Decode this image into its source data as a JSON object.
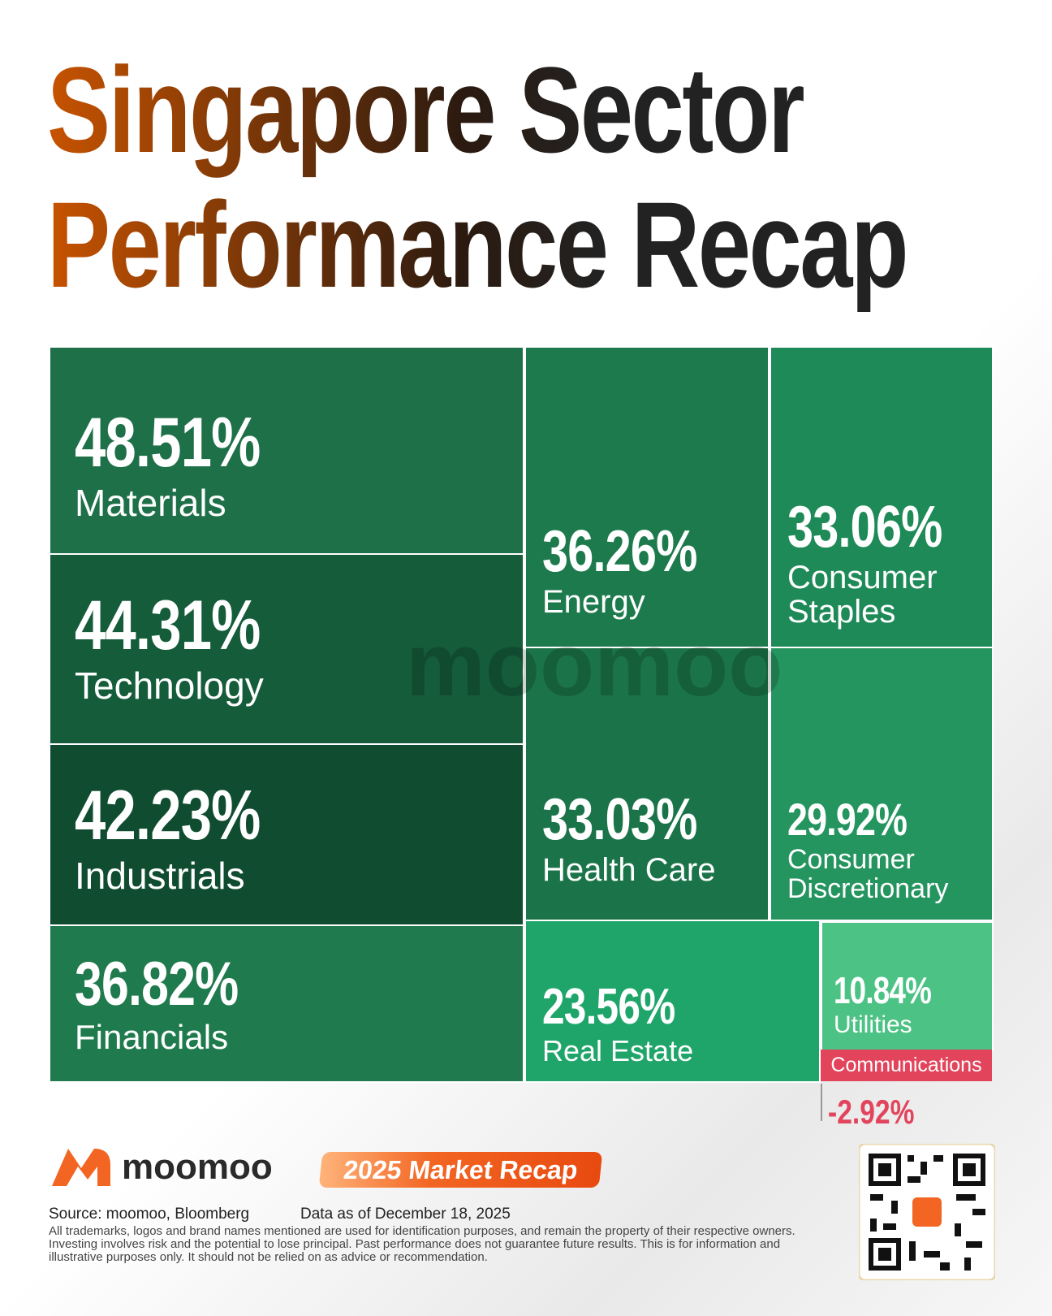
{
  "chart_data": {
    "type": "treemap",
    "title": "Singapore Sector Performance Recap",
    "watermark": "moomoo",
    "categories": [
      "Materials",
      "Technology",
      "Industrials",
      "Financials",
      "Energy",
      "Health Care",
      "Real Estate",
      "Consumer Staples",
      "Consumer Discretionary",
      "Utilities",
      "Communications"
    ],
    "values": [
      48.51,
      44.31,
      42.23,
      36.82,
      36.26,
      33.03,
      23.56,
      33.06,
      29.92,
      10.84,
      -2.92
    ],
    "value_labels": [
      "48.51%",
      "44.31%",
      "42.23%",
      "36.82%",
      "36.26%",
      "33.03%",
      "23.56%",
      "33.06%",
      "29.92%",
      "10.84%",
      "-2.92%"
    ],
    "colors": [
      "#1e7048",
      "#155c3a",
      "#104d30",
      "#1f7a4d",
      "#1d7a4c",
      "#1b7449",
      "#1fa56a",
      "#1e8a58",
      "#25955f",
      "#4cc285",
      "#e2445c"
    ]
  },
  "footer": {
    "brand": "moomoo",
    "badge": "2025 Market Recap",
    "source": "Source: moomoo, Bloomberg",
    "date": "Data as of December 18, 2025",
    "disclaimer": "All trademarks, logos and brand names mentioned are used for identification purposes, and remain the property of their respective owners. Investing involves risk and the potential to lose principal. Past performance does not guarantee future results. This is for information and illustrative purposes only. It should not be relied on as advice or recommendation."
  }
}
